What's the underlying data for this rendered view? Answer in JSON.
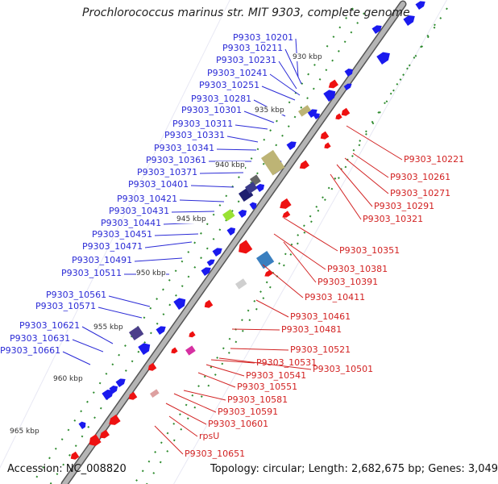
{
  "title": "Prochlorococcus marinus str. MIT 9303, complete genome",
  "footer": {
    "accession": "Accession: NC_008820",
    "summary": "Topology: circular; Length: 2,682,675 bp; Genes: 3,049"
  },
  "colors": {
    "forward": "#1a1aee",
    "reverse": "#ee1111",
    "backbone": "#9a9a9a",
    "dots": "#2e8b2e",
    "label_left": "#2b2bd6",
    "label_right": "#d22222"
  },
  "ticks": [
    "930 kbp",
    "935 kbp",
    "940 kbp",
    "945 kbp",
    "950 kbp",
    "955 kbp",
    "960 kbp",
    "965 kbp"
  ],
  "genes_left": [
    "P9303_10201",
    "P9303_10211",
    "P9303_10231",
    "P9303_10241",
    "P9303_10251",
    "P9303_10281",
    "P9303_10301",
    "P9303_10311",
    "P9303_10331",
    "P9303_10341",
    "P9303_10361",
    "P9303_10371",
    "P9303_10401",
    "P9303_10421",
    "P9303_10431",
    "P9303_10441",
    "P9303_10451",
    "P9303_10471",
    "P9303_10491",
    "P9303_10511",
    "P9303_10561",
    "P9303_10571",
    "P9303_10621",
    "P9303_10631",
    "P9303_10661"
  ],
  "genes_right": [
    "P9303_10221",
    "P9303_10261",
    "P9303_10271",
    "P9303_10291",
    "P9303_10321",
    "P9303_10351",
    "P9303_10381",
    "P9303_10391",
    "P9303_10411",
    "P9303_10461",
    "P9303_10481",
    "P9303_10521",
    "P9303_10501",
    "P9303_10531",
    "P9303_10541",
    "P9303_10551",
    "P9303_10581",
    "P9303_10591",
    "P9303_10601",
    "rpsU",
    "P9303_10651"
  ]
}
